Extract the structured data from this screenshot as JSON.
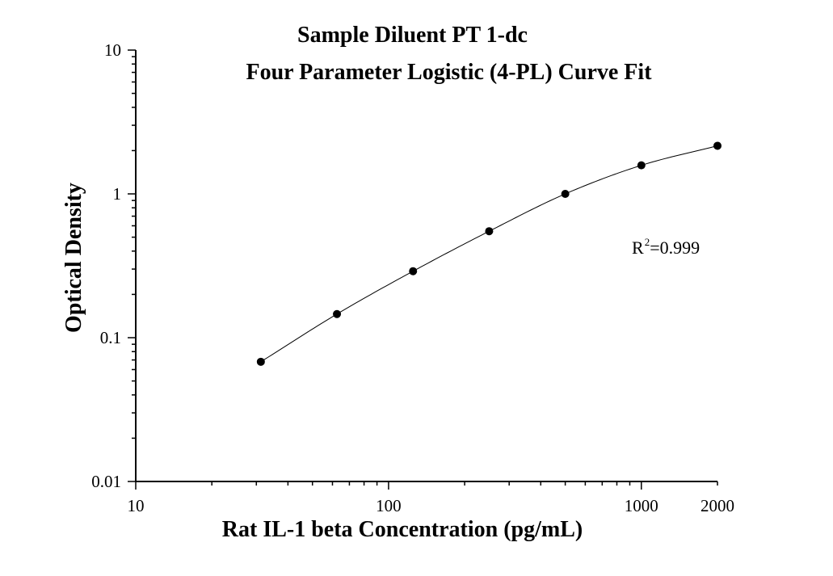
{
  "chart_data": {
    "type": "scatter",
    "title": "Sample Diluent PT 1-dc",
    "subtitle": "Four Parameter Logistic (4-PL) Curve Fit",
    "xlabel": "Rat IL-1 beta Concentration (pg/mL)",
    "ylabel": "Optical Density",
    "xscale": "log",
    "yscale": "log",
    "xlim": [
      10,
      2000
    ],
    "ylim": [
      0.01,
      10
    ],
    "xticks": [
      "10",
      "100",
      "1000",
      "2000"
    ],
    "yticks": [
      "0.01",
      "0.1",
      "1",
      "10"
    ],
    "grid": false,
    "annotation": {
      "text": "R",
      "superscript": "2",
      "suffix": "=0.999"
    },
    "series": [
      {
        "x": [
          31.25,
          62.5,
          125,
          250,
          500,
          1000,
          2000
        ],
        "y": [
          0.068,
          0.146,
          0.29,
          0.55,
          1.0,
          1.58,
          2.16
        ]
      }
    ],
    "fit": {
      "model": "4-PL",
      "x_range": [
        31.25,
        2000
      ],
      "y_start": 0.068,
      "y_end": 2.16
    }
  }
}
